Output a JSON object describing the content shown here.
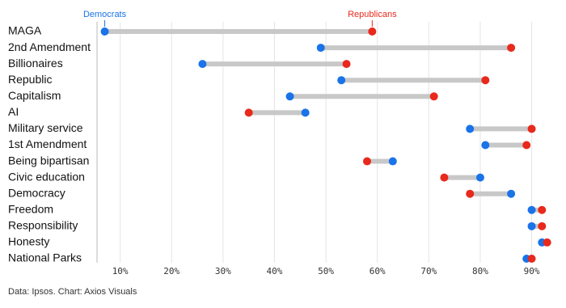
{
  "chart_data": {
    "type": "dumbbell",
    "categories": [
      "MAGA",
      "2nd Amendment",
      "Billionaires",
      "Republic",
      "Capitalism",
      "AI",
      "Military service",
      "1st Amendment",
      "Being bipartisan",
      "Civic education",
      "Democracy",
      "Freedom",
      "Responsibility",
      "Honesty",
      "National Parks"
    ],
    "series": [
      {
        "name": "Democrats",
        "color": "#1a73e8",
        "values": [
          7,
          49,
          26,
          53,
          43,
          46,
          78,
          81,
          63,
          80,
          86,
          90,
          90,
          92,
          89
        ]
      },
      {
        "name": "Republicans",
        "color": "#e8291c",
        "values": [
          59,
          86,
          54,
          81,
          71,
          35,
          90,
          89,
          58,
          73,
          78,
          92,
          92,
          93,
          90
        ]
      }
    ],
    "xlim": [
      5.5,
      94
    ],
    "xticks": [
      {
        "value": 10,
        "label": "10%"
      },
      {
        "value": 20,
        "label": "20%"
      },
      {
        "value": 30,
        "label": "30%"
      },
      {
        "value": 40,
        "label": "40%"
      },
      {
        "value": 50,
        "label": "50%"
      },
      {
        "value": 60,
        "label": "60%"
      },
      {
        "value": 70,
        "label": "70%"
      },
      {
        "value": 80,
        "label": "80%"
      },
      {
        "value": 90,
        "label": "90%"
      }
    ],
    "grid": true,
    "source": "Data: Ipsos. Chart: Axios Visuals"
  }
}
